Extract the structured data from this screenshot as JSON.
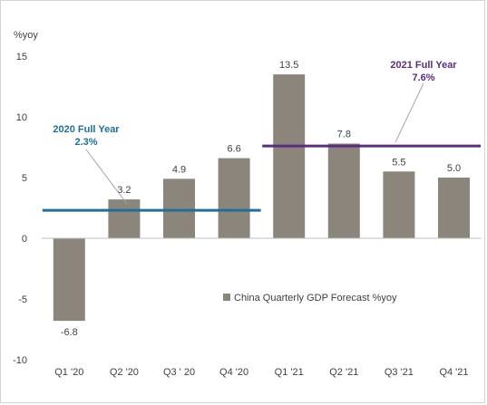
{
  "chart_data": {
    "type": "bar",
    "ylabel": "%yoy",
    "ylim": [
      -10,
      15
    ],
    "yticks": [
      -10,
      -5,
      0,
      5,
      10,
      15
    ],
    "categories": [
      "Q1 '20",
      "Q2 '20",
      "Q3 ' 20",
      "Q4 '20",
      "Q1 '21",
      "Q2 '21",
      "Q3 '21",
      "Q4 '21"
    ],
    "series": [
      {
        "name": "China Quarterly GDP Forecast %yoy",
        "values": [
          -6.8,
          3.2,
          4.9,
          6.6,
          13.5,
          7.8,
          5.5,
          5.0
        ],
        "data_labels": [
          "-6.8",
          "3.2",
          "4.9",
          "6.6",
          "13.5",
          "7.8",
          "5.5",
          "5.0"
        ],
        "color": "#8c857b"
      }
    ],
    "reference_lines": [
      {
        "label_line1": "2020 Full Year",
        "label_line2": "2.3%",
        "value": 2.3,
        "from_category": 0,
        "to_category": 3,
        "color": "#1f6f9a"
      },
      {
        "label_line1": "2021 Full Year",
        "label_line2": "7.6%",
        "value": 7.6,
        "from_category": 4,
        "to_category": 7,
        "color": "#5b2d82"
      }
    ],
    "legend_position": "center-right",
    "grid": false
  }
}
